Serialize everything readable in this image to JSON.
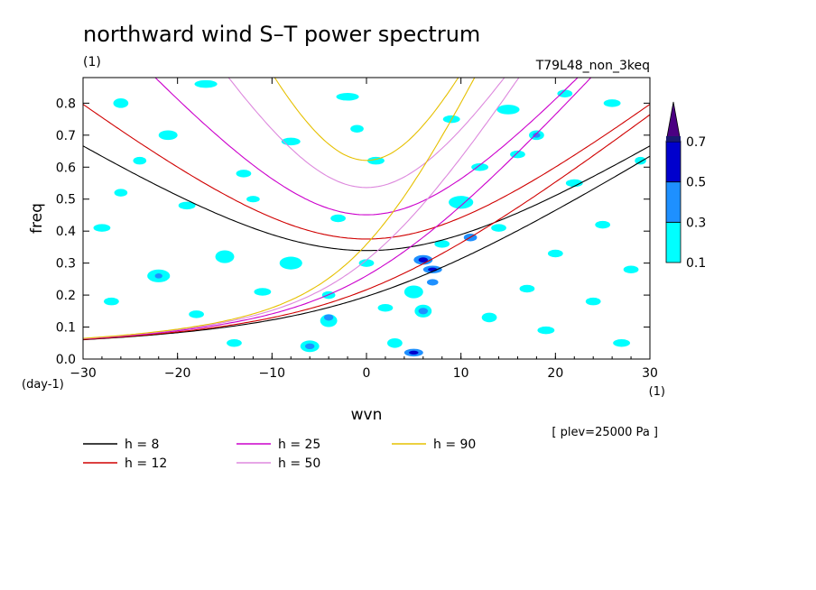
{
  "chart_data": {
    "type": "heatmap",
    "title": "northward wind S–T power spectrum",
    "y_unit": "(1)",
    "experiment": "T79L48_non_3keq",
    "xlabel": "wvn",
    "ylabel": "freq",
    "x_unit": "(1)",
    "y_axis_unit": "(day-1)",
    "level_note": "[ plev=25000 Pa ]",
    "xlim": [
      -30,
      30
    ],
    "ylim": [
      0.0,
      0.88
    ],
    "x_ticks": [
      "−30",
      "−20",
      "−10",
      "0",
      "10",
      "20",
      "30"
    ],
    "x_tick_values": [
      -30,
      -20,
      -10,
      0,
      10,
      20,
      30
    ],
    "y_ticks": [
      "0.0",
      "0.1",
      "0.2",
      "0.3",
      "0.4",
      "0.5",
      "0.6",
      "0.7",
      "0.8"
    ],
    "y_tick_values": [
      0.0,
      0.1,
      0.2,
      0.3,
      0.4,
      0.5,
      0.6,
      0.7,
      0.8
    ],
    "colorbar": {
      "levels": [
        "0.1",
        "0.3",
        "0.5",
        "0.7"
      ],
      "level_values": [
        0.1,
        0.3,
        0.5,
        0.7
      ],
      "colors": [
        "#00ffff",
        "#1e90ff",
        "#0000cd",
        "#191970",
        "#4b0082"
      ]
    },
    "dispersion_curves": [
      {
        "name": "h =  8",
        "h": 8,
        "color": "#000000"
      },
      {
        "name": "h = 12",
        "h": 12,
        "color": "#d00000"
      },
      {
        "name": "h = 25",
        "h": 25,
        "color": "#cc00cc"
      },
      {
        "name": "h = 50",
        "h": 50,
        "color": "#dd88dd"
      },
      {
        "name": "h = 90",
        "h": 90,
        "color": "#e6c000"
      }
    ],
    "contour_blobs": [
      {
        "x": -26,
        "y": 0.8,
        "rx": 0.8,
        "ry": 0.015,
        "level": 0
      },
      {
        "x": -24,
        "y": 0.62,
        "rx": 0.7,
        "ry": 0.012,
        "level": 0
      },
      {
        "x": -21,
        "y": 0.7,
        "rx": 1.0,
        "ry": 0.015,
        "level": 0
      },
      {
        "x": -19,
        "y": 0.48,
        "rx": 0.9,
        "ry": 0.012,
        "level": 0
      },
      {
        "x": -22,
        "y": 0.26,
        "rx": 1.2,
        "ry": 0.02,
        "level": 0
      },
      {
        "x": -22,
        "y": 0.26,
        "rx": 0.4,
        "ry": 0.008,
        "level": 1
      },
      {
        "x": -28,
        "y": 0.41,
        "rx": 0.9,
        "ry": 0.012,
        "level": 0
      },
      {
        "x": -26,
        "y": 0.52,
        "rx": 0.7,
        "ry": 0.012,
        "level": 0
      },
      {
        "x": -17,
        "y": 0.86,
        "rx": 1.2,
        "ry": 0.012,
        "level": 0
      },
      {
        "x": -15,
        "y": 0.32,
        "rx": 1.0,
        "ry": 0.02,
        "level": 0
      },
      {
        "x": -13,
        "y": 0.58,
        "rx": 0.8,
        "ry": 0.012,
        "level": 0
      },
      {
        "x": -11,
        "y": 0.21,
        "rx": 0.9,
        "ry": 0.012,
        "level": 0
      },
      {
        "x": -12,
        "y": 0.5,
        "rx": 0.7,
        "ry": 0.01,
        "level": 0
      },
      {
        "x": -8,
        "y": 0.68,
        "rx": 1.0,
        "ry": 0.012,
        "level": 0
      },
      {
        "x": -8,
        "y": 0.3,
        "rx": 1.2,
        "ry": 0.02,
        "level": 0
      },
      {
        "x": -6,
        "y": 0.04,
        "rx": 1.0,
        "ry": 0.018,
        "level": 0
      },
      {
        "x": -6,
        "y": 0.04,
        "rx": 0.5,
        "ry": 0.009,
        "level": 1
      },
      {
        "x": -4,
        "y": 0.12,
        "rx": 0.9,
        "ry": 0.02,
        "level": 0
      },
      {
        "x": -4,
        "y": 0.13,
        "rx": 0.5,
        "ry": 0.01,
        "level": 1
      },
      {
        "x": -4,
        "y": 0.2,
        "rx": 0.7,
        "ry": 0.012,
        "level": 0
      },
      {
        "x": -3,
        "y": 0.44,
        "rx": 0.8,
        "ry": 0.012,
        "level": 0
      },
      {
        "x": -2,
        "y": 0.82,
        "rx": 1.2,
        "ry": 0.012,
        "level": 0
      },
      {
        "x": 0,
        "y": 0.3,
        "rx": 0.8,
        "ry": 0.012,
        "level": 0
      },
      {
        "x": 2,
        "y": 0.16,
        "rx": 0.8,
        "ry": 0.012,
        "level": 0
      },
      {
        "x": 3,
        "y": 0.05,
        "rx": 0.8,
        "ry": 0.015,
        "level": 0
      },
      {
        "x": 5,
        "y": 0.02,
        "rx": 1.0,
        "ry": 0.012,
        "level": 1
      },
      {
        "x": 5,
        "y": 0.02,
        "rx": 0.5,
        "ry": 0.006,
        "level": 2
      },
      {
        "x": 5,
        "y": 0.21,
        "rx": 1.0,
        "ry": 0.02,
        "level": 0
      },
      {
        "x": 6,
        "y": 0.15,
        "rx": 0.9,
        "ry": 0.02,
        "level": 0
      },
      {
        "x": 6,
        "y": 0.15,
        "rx": 0.5,
        "ry": 0.01,
        "level": 1
      },
      {
        "x": 6,
        "y": 0.31,
        "rx": 1.0,
        "ry": 0.015,
        "level": 1
      },
      {
        "x": 6,
        "y": 0.31,
        "rx": 0.5,
        "ry": 0.008,
        "level": 2
      },
      {
        "x": 7,
        "y": 0.28,
        "rx": 1.0,
        "ry": 0.012,
        "level": 1
      },
      {
        "x": 7,
        "y": 0.28,
        "rx": 0.5,
        "ry": 0.006,
        "level": 2
      },
      {
        "x": 7,
        "y": 0.24,
        "rx": 0.6,
        "ry": 0.01,
        "level": 1
      },
      {
        "x": 8,
        "y": 0.36,
        "rx": 0.8,
        "ry": 0.012,
        "level": 0
      },
      {
        "x": 10,
        "y": 0.49,
        "rx": 0.8,
        "ry": 0.012,
        "level": 1
      },
      {
        "x": 10,
        "y": 0.49,
        "rx": 1.3,
        "ry": 0.02,
        "level": 0
      },
      {
        "x": 11,
        "y": 0.38,
        "rx": 0.7,
        "ry": 0.012,
        "level": 1
      },
      {
        "x": 12,
        "y": 0.6,
        "rx": 0.9,
        "ry": 0.012,
        "level": 0
      },
      {
        "x": 13,
        "y": 0.13,
        "rx": 0.8,
        "ry": 0.015,
        "level": 0
      },
      {
        "x": 14,
        "y": 0.41,
        "rx": 0.8,
        "ry": 0.012,
        "level": 0
      },
      {
        "x": 15,
        "y": 0.78,
        "rx": 1.2,
        "ry": 0.015,
        "level": 0
      },
      {
        "x": 16,
        "y": 0.64,
        "rx": 0.8,
        "ry": 0.012,
        "level": 0
      },
      {
        "x": 17,
        "y": 0.22,
        "rx": 0.8,
        "ry": 0.012,
        "level": 0
      },
      {
        "x": 18,
        "y": 0.7,
        "rx": 0.8,
        "ry": 0.015,
        "level": 0
      },
      {
        "x": 18,
        "y": 0.7,
        "rx": 0.4,
        "ry": 0.008,
        "level": 1
      },
      {
        "x": 19,
        "y": 0.09,
        "rx": 0.9,
        "ry": 0.012,
        "level": 0
      },
      {
        "x": 20,
        "y": 0.33,
        "rx": 0.8,
        "ry": 0.012,
        "level": 0
      },
      {
        "x": 22,
        "y": 0.55,
        "rx": 0.9,
        "ry": 0.012,
        "level": 0
      },
      {
        "x": 24,
        "y": 0.18,
        "rx": 0.8,
        "ry": 0.012,
        "level": 0
      },
      {
        "x": 25,
        "y": 0.42,
        "rx": 0.8,
        "ry": 0.012,
        "level": 0
      },
      {
        "x": 26,
        "y": 0.8,
        "rx": 0.9,
        "ry": 0.012,
        "level": 0
      },
      {
        "x": 27,
        "y": 0.05,
        "rx": 0.9,
        "ry": 0.012,
        "level": 0
      },
      {
        "x": 28,
        "y": 0.28,
        "rx": 0.8,
        "ry": 0.012,
        "level": 0
      },
      {
        "x": 29,
        "y": 0.62,
        "rx": 0.6,
        "ry": 0.012,
        "level": 0
      },
      {
        "x": -18,
        "y": 0.14,
        "rx": 0.8,
        "ry": 0.012,
        "level": 0
      },
      {
        "x": -27,
        "y": 0.18,
        "rx": 0.8,
        "ry": 0.012,
        "level": 0
      },
      {
        "x": -14,
        "y": 0.05,
        "rx": 0.8,
        "ry": 0.012,
        "level": 0
      },
      {
        "x": 1,
        "y": 0.62,
        "rx": 0.9,
        "ry": 0.012,
        "level": 0
      },
      {
        "x": -1,
        "y": 0.72,
        "rx": 0.7,
        "ry": 0.012,
        "level": 0
      },
      {
        "x": 9,
        "y": 0.75,
        "rx": 0.9,
        "ry": 0.012,
        "level": 0
      },
      {
        "x": 21,
        "y": 0.83,
        "rx": 0.8,
        "ry": 0.012,
        "level": 0
      }
    ]
  }
}
